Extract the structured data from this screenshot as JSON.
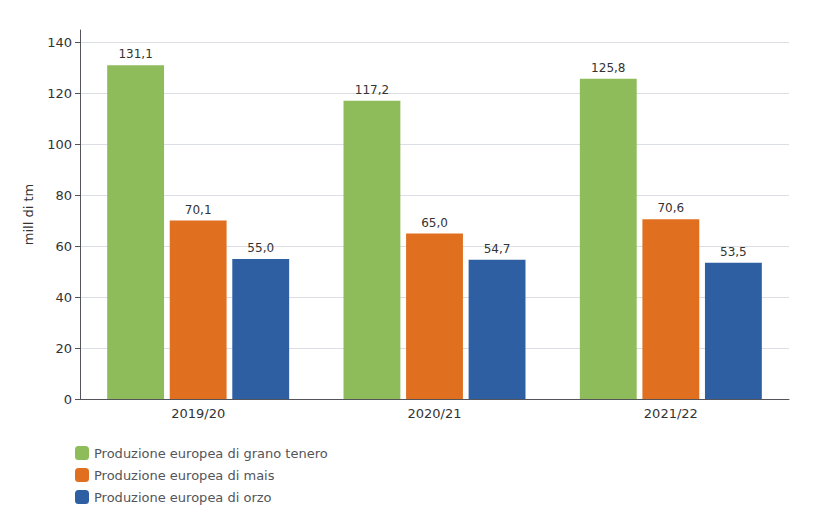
{
  "chart_data": {
    "type": "bar",
    "categories": [
      "2019/20",
      "2020/21",
      "2021/22"
    ],
    "series": [
      {
        "name": "Produzione europea di grano tenero",
        "color": "#8FBC5A",
        "values": [
          131.1,
          117.2,
          125.8
        ],
        "value_labels": [
          "131,1",
          "117,2",
          "125,8"
        ]
      },
      {
        "name": "Produzione europea di mais",
        "color": "#E07020",
        "values": [
          70.1,
          65.0,
          70.6
        ],
        "value_labels": [
          "70,1",
          "65,0",
          "70,6"
        ]
      },
      {
        "name": "Produzione europea di orzo",
        "color": "#2E5FA3",
        "values": [
          55.0,
          54.7,
          53.5
        ],
        "value_labels": [
          "55,0",
          "54,7",
          "53,5"
        ]
      }
    ],
    "ylabel": "mill di tm",
    "ylim": [
      0,
      145
    ],
    "yticks": [
      0,
      20,
      40,
      60,
      80,
      100,
      120,
      140
    ],
    "grid": true,
    "legend": "lower left",
    "data_labels": true
  }
}
